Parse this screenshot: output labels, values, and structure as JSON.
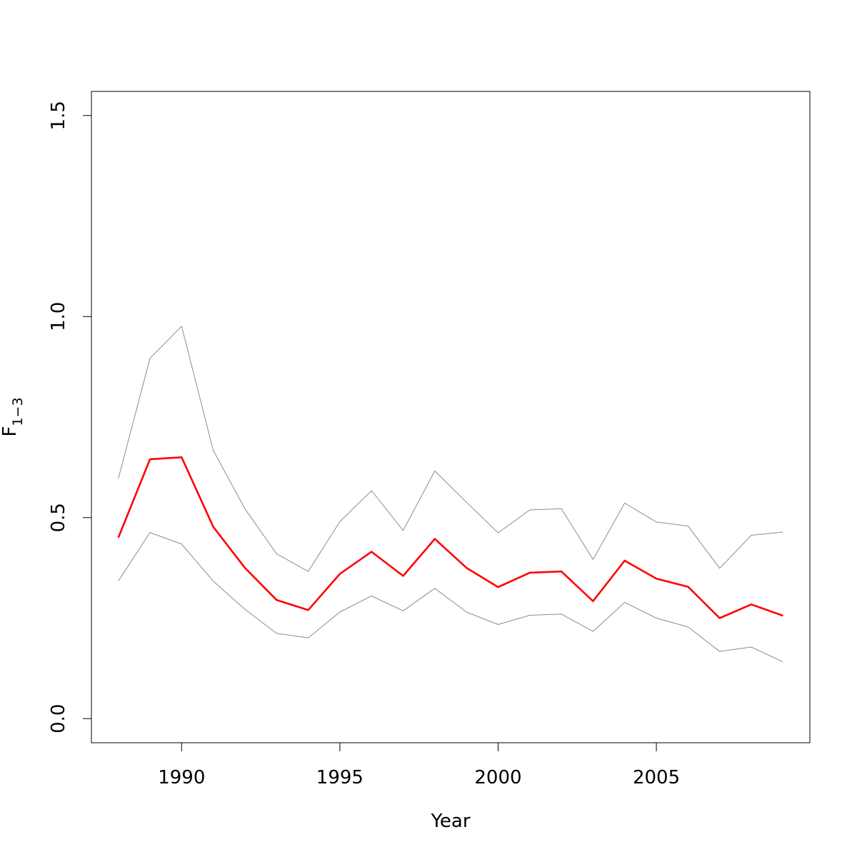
{
  "chart_data": {
    "type": "line",
    "title": "",
    "xlabel": "Year",
    "ylabel": "F",
    "ylabel_subscript": "1−3",
    "xlim": [
      1987.15,
      2009.85
    ],
    "ylim": [
      -0.06,
      1.56
    ],
    "xticks": [
      1990,
      1995,
      2000,
      2005
    ],
    "xtick_labels": [
      "1990",
      "1995",
      "2000",
      "2005"
    ],
    "yticks": [
      0.0,
      0.5,
      1.0,
      1.5
    ],
    "ytick_labels": [
      "0.0",
      "0.5",
      "1.0",
      "1.5"
    ],
    "grid": false,
    "legend": "none",
    "x": [
      1988,
      1989,
      1990,
      1991,
      1992,
      1993,
      1994,
      1995,
      1996,
      1997,
      1998,
      1999,
      2000,
      2001,
      2002,
      2003,
      2004,
      2005,
      2006,
      2007,
      2008,
      2009
    ],
    "series": [
      {
        "role": "estimate",
        "color": "#ff0000",
        "values": [
          0.45,
          0.645,
          0.65,
          0.477,
          0.375,
          0.295,
          0.27,
          0.36,
          0.415,
          0.355,
          0.447,
          0.375,
          0.327,
          0.363,
          0.366,
          0.292,
          0.393,
          0.348,
          0.328,
          0.25,
          0.284,
          0.256
        ]
      },
      {
        "role": "upper-bound",
        "color": "#8c8c8c",
        "values": [
          0.597,
          0.896,
          0.976,
          0.667,
          0.522,
          0.41,
          0.366,
          0.49,
          0.567,
          0.468,
          0.616,
          0.538,
          0.462,
          0.519,
          0.522,
          0.396,
          0.536,
          0.489,
          0.479,
          0.374,
          0.456,
          0.464
        ]
      },
      {
        "role": "lower-bound",
        "color": "#8c8c8c",
        "values": [
          0.342,
          0.463,
          0.434,
          0.342,
          0.272,
          0.212,
          0.201,
          0.265,
          0.305,
          0.268,
          0.324,
          0.265,
          0.234,
          0.257,
          0.26,
          0.217,
          0.289,
          0.25,
          0.228,
          0.167,
          0.178,
          0.141
        ]
      }
    ]
  }
}
